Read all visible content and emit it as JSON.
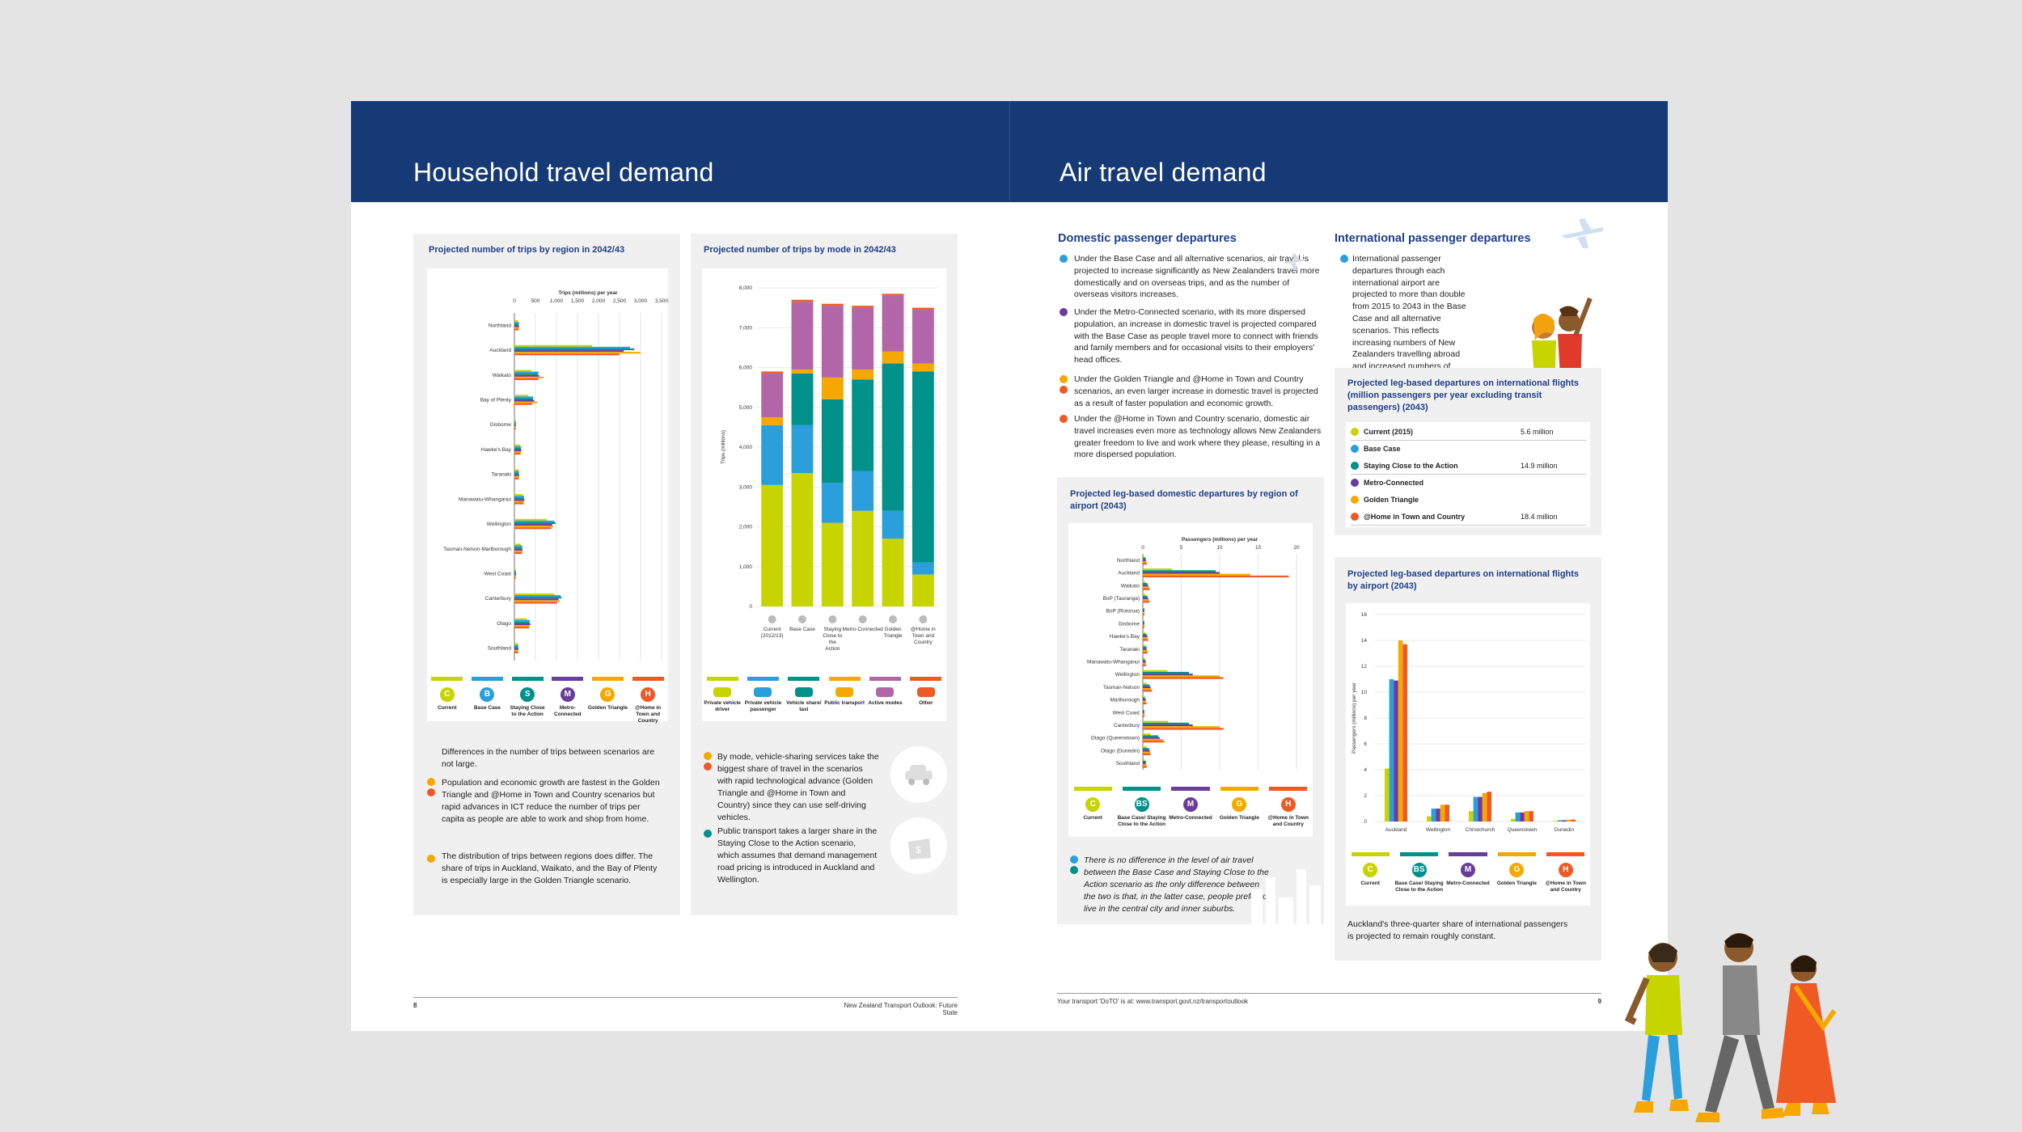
{
  "left_page": {
    "title": "Household travel demand",
    "chart_region": {
      "title": "Projected number of trips by region in 2042/43",
      "axis_label": "Trips (millions) per year",
      "ticks": [
        "0",
        "500",
        "1,000",
        "1,500",
        "2,000",
        "2,500",
        "3,000",
        "3,500"
      ]
    },
    "chart_mode": {
      "title": "Projected number of trips by mode in 2042/43",
      "ylabel": "Trips (millions)",
      "yticks": [
        "0",
        "1,000",
        "2,000",
        "3,000",
        "4,000",
        "5,000",
        "6,000",
        "7,000",
        "8,000"
      ]
    },
    "text_region": {
      "p1": "Differences in the number of trips between scenarios are not large.",
      "b1": "Population and economic growth are fastest in the Golden Triangle and @Home in Town and Country scenarios but rapid advances in ICT reduce the number of trips per capita as people are able to work and shop from home.",
      "b2": "The distribution of trips between regions does differ. The share of trips in Auckland, Waikato, and the Bay of Plenty is especially large in the Golden Triangle scenario."
    },
    "text_mode": {
      "b1": "By mode, vehicle-sharing services take the biggest share of travel in the scenarios with rapid technological advance (Golden Triangle and @Home in Town and Country) since they can use self-driving vehicles.",
      "b2": "Public transport takes a larger share in the Staying Close to the Action scenario, which assumes that demand management road pricing is introduced in Auckland and Wellington."
    },
    "footer_num": "8",
    "footer_text": "New Zealand Transport Outlook: Future State"
  },
  "right_page": {
    "title": "Air travel demand",
    "domestic_heading": "Domestic passenger departures",
    "domestic_bullets": [
      "Under the Base Case and all alternative scenarios, air travel is projected to increase significantly as New Zealanders travel more domestically and on overseas trips, and as the number of overseas visitors increases.",
      "Under the Metro-Connected scenario, with its more dispersed population, an increase in domestic travel is projected compared with the Base Case as people travel more to connect with friends and family members and for occasional visits to their employers' head offices.",
      "Under the Golden Triangle and @Home in Town and Country scenarios, an even larger increase in domestic travel is projected as a result of faster population and economic growth.",
      "Under the @Home in Town and Country scenario, domestic air travel increases even more as technology allows New Zealanders greater freedom to live and work where they please, resulting in a more dispersed population."
    ],
    "international_heading": "International passenger departures",
    "international_text": "International passenger departures through each international airport are projected to more than double from 2015 to 2043 in the Base Case and all alternative scenarios. This reflects increasing numbers of New Zealanders travelling abroad and increased numbers of overseas visitors.",
    "chart_domestic": {
      "title": "Projected leg-based domestic departures by region of airport (2043)",
      "axis_label": "Passengers (millions) per year",
      "ticks": [
        "0",
        "5",
        "10",
        "15",
        "20"
      ]
    },
    "domestic_note": "There is no difference in the level of air travel between the Base Case and Staying Close to the Action scenario as the only difference between the two is that, in the latter case, people prefer to live in the central city and inner suburbs.",
    "intl_table": {
      "title": "Projected leg-based departures on international flights (million passengers per year excluding transit passengers) (2043)",
      "rows": [
        {
          "label": "Current (2015)",
          "value": "5.6 million"
        },
        {
          "label": "Base Case",
          "value": ""
        },
        {
          "label": "Staying Close to the Action",
          "value": "14.9 million"
        },
        {
          "label": "Metro-Connected",
          "value": ""
        },
        {
          "label": "Golden Triangle",
          "value": ""
        },
        {
          "label": "@Home in Town and Country",
          "value": "18.4 million"
        }
      ]
    },
    "chart_intl": {
      "title": "Projected leg-based departures on international flights by airport (2043)",
      "ylabel": "Passengers (millions) per year",
      "yticks": [
        "0",
        "2",
        "4",
        "6",
        "8",
        "10",
        "12",
        "14",
        "16"
      ],
      "categories": [
        "Auckland",
        "Wellington",
        "Christchurch",
        "Queenstown",
        "Dunedin"
      ]
    },
    "intl_note": "Auckland's three-quarter share of international passengers is projected to remain roughly constant.",
    "footer_text": "Your transport 'DoTO' is at: www.transport.govt.nz/transportoutlook",
    "footer_num": "9"
  },
  "legends": {
    "scenario5": [
      {
        "letter": "C",
        "label": "Current",
        "color": "#c8d400"
      },
      {
        "letter": "B",
        "label": "Base Case",
        "color": "#2b9fdc"
      },
      {
        "letter": "S",
        "label": "Staying Close to the Action",
        "color": "#00918a"
      },
      {
        "letter": "M",
        "label": "Metro-Connected",
        "color": "#6a3d9a"
      },
      {
        "letter": "G",
        "label": "Golden Triangle",
        "color": "#f6a800"
      },
      {
        "letter": "H",
        "label": "@Home in Town and Country",
        "color": "#ef5a24"
      }
    ],
    "scenario_air": [
      {
        "letter": "C",
        "label": "Current",
        "color": "#c8d400"
      },
      {
        "letter": "BS",
        "label": "Base Case/ Staying Close to the Action",
        "color": "#00918a"
      },
      {
        "letter": "M",
        "label": "Metro-Connected",
        "color": "#6a3d9a"
      },
      {
        "letter": "G",
        "label": "Golden Triangle",
        "color": "#f6a800"
      },
      {
        "letter": "H",
        "label": "@Home in Town and Country",
        "color": "#ef5a24"
      }
    ],
    "modes": [
      {
        "label": "Private vehicle driver",
        "color": "#c8d400"
      },
      {
        "label": "Private vehicle passenger",
        "color": "#2b9fdc"
      },
      {
        "label": "Vehicle share/ taxi",
        "color": "#00918a"
      },
      {
        "label": "Public transport",
        "color": "#f6a800"
      },
      {
        "label": "Active modes",
        "color": "#b266a8"
      },
      {
        "label": "Other",
        "color": "#ef5a24"
      }
    ]
  },
  "chart_data": [
    {
      "type": "bar",
      "orientation": "horizontal",
      "title": "Projected number of trips by region in 2042/43",
      "xlabel": "Trips (millions) per year",
      "xlim": [
        0,
        3500
      ],
      "categories": [
        "Northland",
        "Auckland",
        "Waikato",
        "Bay of Plenty",
        "Gisborne",
        "Hawke's Bay",
        "Taranaki",
        "Manawatu-Whanganui",
        "Wellington",
        "Tasman-Nelson-Marlborough",
        "West Coast",
        "Canterbury",
        "Otago",
        "Southland"
      ],
      "series": [
        {
          "name": "Current",
          "color": "#c8d400",
          "values": [
            80,
            1850,
            400,
            330,
            30,
            130,
            100,
            200,
            770,
            150,
            30,
            950,
            300,
            80
          ]
        },
        {
          "name": "Base Case",
          "color": "#2b9fdc",
          "values": [
            110,
            2750,
            580,
            450,
            35,
            160,
            110,
            230,
            950,
            190,
            35,
            1100,
            370,
            95
          ]
        },
        {
          "name": "Staying Close to the Action",
          "color": "#00918a",
          "values": [
            105,
            2850,
            560,
            440,
            35,
            155,
            105,
            225,
            980,
            185,
            35,
            1120,
            360,
            90
          ]
        },
        {
          "name": "Metro-Connected",
          "color": "#6a3d9a",
          "values": [
            110,
            2600,
            590,
            470,
            35,
            165,
            115,
            240,
            900,
            195,
            40,
            1050,
            380,
            100
          ]
        },
        {
          "name": "Golden Triangle",
          "color": "#f6a800",
          "values": [
            115,
            3000,
            690,
            540,
            35,
            155,
            110,
            225,
            920,
            190,
            35,
            1080,
            360,
            90
          ]
        },
        {
          "name": "@Home in Town and Country",
          "color": "#ef5a24",
          "values": [
            100,
            2500,
            570,
            420,
            30,
            150,
            105,
            220,
            880,
            180,
            35,
            1020,
            350,
            90
          ]
        }
      ]
    },
    {
      "type": "bar",
      "stacked": true,
      "title": "Projected number of trips by mode in 2042/43",
      "ylabel": "Trips (millions)",
      "ylim": [
        0,
        8000
      ],
      "categories": [
        "Current (2012/13)",
        "Base Case",
        "Staying Close to the Action",
        "Metro-Connected",
        "Golden Triangle",
        "@Home in Town and Country"
      ],
      "series": [
        {
          "name": "Private vehicle driver",
          "color": "#c8d400",
          "values": [
            3050,
            3350,
            2100,
            2400,
            1700,
            800
          ]
        },
        {
          "name": "Private vehicle passenger",
          "color": "#2b9fdc",
          "values": [
            1500,
            1200,
            1000,
            1000,
            700,
            300
          ]
        },
        {
          "name": "Vehicle share/ taxi",
          "color": "#00918a",
          "values": [
            0,
            1300,
            2100,
            2300,
            3700,
            4800
          ]
        },
        {
          "name": "Public transport",
          "color": "#f6a800",
          "values": [
            200,
            100,
            550,
            250,
            300,
            200
          ]
        },
        {
          "name": "Active modes",
          "color": "#b266a8",
          "values": [
            1100,
            1700,
            1800,
            1550,
            1400,
            1350
          ]
        },
        {
          "name": "Other",
          "color": "#ef5a24",
          "values": [
            50,
            50,
            50,
            50,
            50,
            50
          ]
        }
      ]
    },
    {
      "type": "bar",
      "orientation": "horizontal",
      "title": "Projected leg-based domestic departures by region of airport (2043)",
      "xlabel": "Passengers (millions) per year",
      "xlim": [
        0,
        20
      ],
      "categories": [
        "Northland",
        "Auckland",
        "Waikato",
        "BoP (Tauranga)",
        "BoP (Rotorua)",
        "Gisborne",
        "Hawke's Bay",
        "Taranaki",
        "Manawatu-Whanganui",
        "Wellington",
        "Tasman-Nelson",
        "Marlborough",
        "West Coast",
        "Canterbury",
        "Otago (Queenstown)",
        "Otago (Dunedin)",
        "Southland"
      ],
      "series": [
        {
          "name": "Current",
          "color": "#c8d400",
          "values": [
            0.2,
            3.8,
            0.3,
            0.3,
            0.1,
            0.1,
            0.3,
            0.3,
            0.2,
            3.2,
            0.5,
            0.2,
            0.1,
            3.3,
            1.0,
            0.5,
            0.2
          ]
        },
        {
          "name": "Base Case/ Staying Close to the Action",
          "color": "#00918a",
          "values": [
            0.4,
            9.5,
            0.6,
            0.6,
            0.2,
            0.2,
            0.5,
            0.5,
            0.3,
            6.0,
            0.9,
            0.3,
            0.2,
            6.0,
            2.0,
            0.8,
            0.4
          ]
        },
        {
          "name": "Metro-Connected",
          "color": "#6a3d9a",
          "values": [
            0.4,
            10.0,
            0.7,
            0.7,
            0.2,
            0.2,
            0.6,
            0.5,
            0.4,
            6.5,
            1.0,
            0.4,
            0.2,
            6.5,
            2.2,
            0.9,
            0.4
          ]
        },
        {
          "name": "Golden Triangle",
          "color": "#f6a800",
          "values": [
            0.5,
            14.0,
            0.8,
            0.8,
            0.2,
            0.2,
            0.6,
            0.6,
            0.4,
            10.0,
            1.1,
            0.4,
            0.2,
            10.0,
            2.6,
            1.0,
            0.5
          ]
        },
        {
          "name": "@Home in Town and Country",
          "color": "#ef5a24",
          "values": [
            0.5,
            19.0,
            0.9,
            0.9,
            0.2,
            0.2,
            0.7,
            0.6,
            0.4,
            10.5,
            1.2,
            0.5,
            0.2,
            10.5,
            2.8,
            1.0,
            0.5
          ]
        }
      ]
    },
    {
      "type": "bar",
      "title": "Projected leg-based departures on international flights by airport (2043)",
      "ylabel": "Passengers (millions) per year",
      "ylim": [
        0,
        16
      ],
      "categories": [
        "Auckland",
        "Wellington",
        "Christchurch",
        "Queenstown",
        "Dunedin"
      ],
      "series": [
        {
          "name": "Current",
          "color": "#c8d400",
          "values": [
            4.1,
            0.4,
            0.8,
            0.2,
            0.05
          ]
        },
        {
          "name": "Base Case/ Staying Close to the Action",
          "color": "#2b9fdc",
          "values": [
            11.0,
            1.0,
            1.9,
            0.7,
            0.1
          ]
        },
        {
          "name": "Metro-Connected",
          "color": "#6a3d9a",
          "values": [
            10.9,
            1.0,
            1.9,
            0.7,
            0.1
          ]
        },
        {
          "name": "Golden Triangle",
          "color": "#f6a800",
          "values": [
            14.0,
            1.3,
            2.2,
            0.8,
            0.15
          ]
        },
        {
          "name": "@Home in Town and Country",
          "color": "#ef5a24",
          "values": [
            13.7,
            1.3,
            2.3,
            0.8,
            0.15
          ]
        }
      ]
    }
  ]
}
